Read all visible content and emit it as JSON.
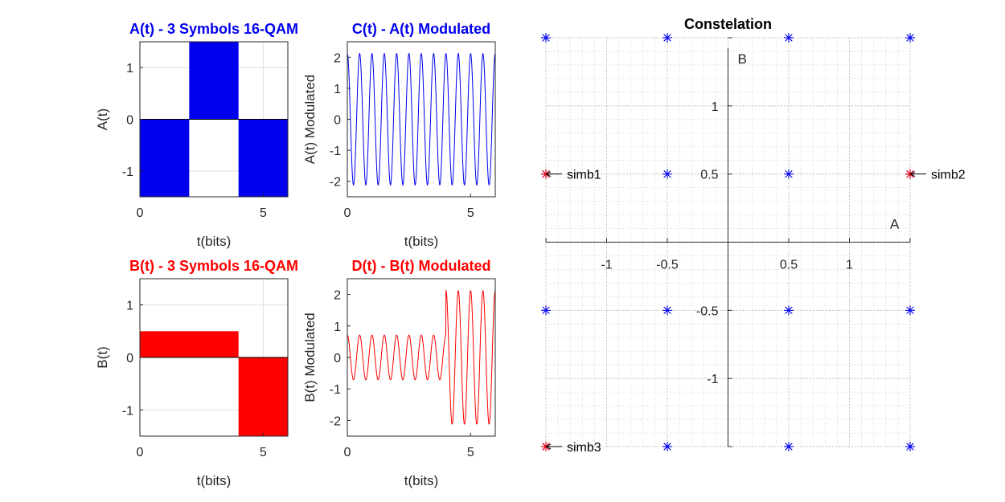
{
  "chart_data": [
    {
      "id": "A",
      "type": "area",
      "title": "A(t) - 3 Symbols 16-QAM",
      "title_color": "#0000ee",
      "xlabel": "t(bits)",
      "ylabel": "A(t)",
      "xlim": [
        0,
        6
      ],
      "ylim": [
        -1.5,
        1.5
      ],
      "xticks": [
        0,
        5
      ],
      "yticks": [
        -1,
        0,
        1
      ],
      "grid": true,
      "fill_color": "#0000ee",
      "segments": [
        {
          "t_start": 0,
          "t_end": 2,
          "value": -1.5
        },
        {
          "t_start": 2,
          "t_end": 4,
          "value": 1.5
        },
        {
          "t_start": 4,
          "t_end": 6,
          "value": -1.5
        }
      ]
    },
    {
      "id": "C",
      "type": "line",
      "title": "C(t) - A(t) Modulated",
      "title_color": "#0000ee",
      "xlabel": "t(bits)",
      "ylabel": "A(t) Modulated",
      "xlim": [
        0,
        6
      ],
      "ylim": [
        -2.5,
        2.5
      ],
      "xticks": [
        0,
        5
      ],
      "yticks": [
        -2,
        -1,
        0,
        1,
        2
      ],
      "grid": false,
      "line_color": "#0000ee",
      "signal": {
        "carrier_cycles_per_bit": 2,
        "amplitudes": [
          2.12,
          2.12,
          2.12
        ],
        "bits_per_symbol": 2
      }
    },
    {
      "id": "B",
      "type": "area",
      "title": "B(t) - 3 Symbols 16-QAM",
      "title_color": "#ff0000",
      "xlabel": "t(bits)",
      "ylabel": "B(t)",
      "xlim": [
        0,
        6
      ],
      "ylim": [
        -1.5,
        1.5
      ],
      "xticks": [
        0,
        5
      ],
      "yticks": [
        -1,
        0,
        1
      ],
      "grid": true,
      "fill_color": "#ff0000",
      "segments": [
        {
          "t_start": 0,
          "t_end": 4,
          "value": 0.5
        },
        {
          "t_start": 4,
          "t_end": 6,
          "value": -1.5
        }
      ]
    },
    {
      "id": "D",
      "type": "line",
      "title": "D(t) - B(t) Modulated",
      "title_color": "#ff0000",
      "xlabel": "t(bits)",
      "ylabel": "B(t) Modulated",
      "xlim": [
        0,
        6
      ],
      "ylim": [
        -2.5,
        2.5
      ],
      "xticks": [
        0,
        5
      ],
      "yticks": [
        -2,
        -1,
        0,
        1,
        2
      ],
      "grid": false,
      "line_color": "#ff0000",
      "signal": {
        "carrier_cycles_per_bit": 2,
        "amplitudes": [
          0.71,
          0.71,
          2.12
        ],
        "bits_per_symbol": 2
      }
    },
    {
      "id": "Const",
      "type": "scatter",
      "title": "Constelation",
      "title_color": "#000000",
      "xlabel": "A",
      "ylabel": "B",
      "xlim": [
        -1.5,
        1.5
      ],
      "ylim": [
        -1.5,
        1.5
      ],
      "xticks": [
        -1,
        -0.5,
        0.5,
        1
      ],
      "yticks": [
        -1,
        -0.5,
        0.5,
        1
      ],
      "grid": true,
      "minor_grid": true,
      "points": [
        {
          "x": -1.5,
          "y": 1.5
        },
        {
          "x": -0.5,
          "y": 1.5
        },
        {
          "x": 0.5,
          "y": 1.5
        },
        {
          "x": 1.5,
          "y": 1.5
        },
        {
          "x": -1.5,
          "y": 0.5
        },
        {
          "x": -0.5,
          "y": 0.5
        },
        {
          "x": 0.5,
          "y": 0.5
        },
        {
          "x": 1.5,
          "y": 0.5
        },
        {
          "x": -1.5,
          "y": -0.5
        },
        {
          "x": -0.5,
          "y": -0.5
        },
        {
          "x": 0.5,
          "y": -0.5
        },
        {
          "x": 1.5,
          "y": -0.5
        },
        {
          "x": -1.5,
          "y": -1.5
        },
        {
          "x": -0.5,
          "y": -1.5
        },
        {
          "x": 0.5,
          "y": -1.5
        },
        {
          "x": 1.5,
          "y": -1.5
        }
      ],
      "point_color": "#0000ee",
      "highlight_color": "#ff0000",
      "symbols": [
        {
          "label": "simb1",
          "x": -1.5,
          "y": 0.5
        },
        {
          "label": "simb2",
          "x": 1.5,
          "y": 0.5
        },
        {
          "label": "simb3",
          "x": -1.5,
          "y": -1.5
        }
      ]
    }
  ]
}
